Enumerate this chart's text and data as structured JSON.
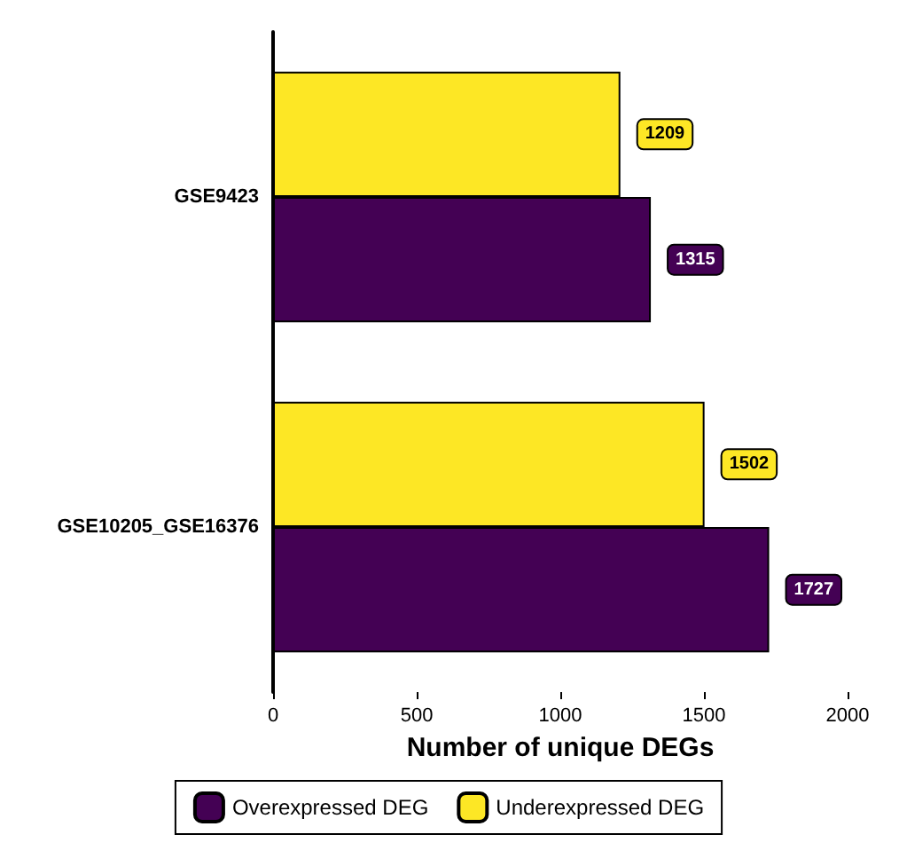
{
  "chart_data": {
    "type": "bar",
    "orientation": "horizontal",
    "xlabel": "Number of unique DEGs",
    "categories": [
      "GSE9423",
      "GSE10205_GSE16376"
    ],
    "series": [
      {
        "name": "Overexpressed DEG",
        "color": "#440154",
        "values": [
          1315,
          1727
        ]
      },
      {
        "name": "Underexpressed DEG",
        "color": "#fde725",
        "values": [
          1209,
          1502
        ]
      }
    ],
    "xlim": [
      0,
      2000
    ],
    "xticks": [
      0,
      500,
      1000,
      1500,
      2000
    ],
    "grid": false,
    "legend": "bottom",
    "data_labels": true
  }
}
